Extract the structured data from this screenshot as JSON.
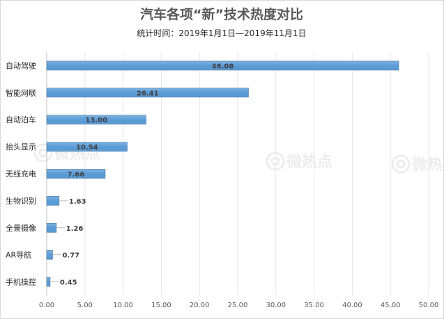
{
  "chart_data": {
    "type": "bar",
    "orientation": "horizontal",
    "title": "汽车各项“新”技术热度对比",
    "subtitle": "统计时间：2019年1月1日—2019年11月1日",
    "categories": [
      "自动驾驶",
      "智能网联",
      "自动泊车",
      "抬头显示",
      "无线充电",
      "生物识别",
      "全景摄像",
      "AR导航",
      "手机操控"
    ],
    "values": [
      46.08,
      26.41,
      13.0,
      10.54,
      7.66,
      1.63,
      1.26,
      0.77,
      0.45
    ],
    "value_labels": [
      "46.08",
      "26.41",
      "13.00",
      "10.54",
      "7.66",
      "1.63",
      "1.26",
      "0.77",
      "0.45"
    ],
    "xlim": [
      0,
      50
    ],
    "xticks": [
      "0.00",
      "5.00",
      "10.00",
      "15.00",
      "20.00",
      "25.00",
      "30.00",
      "35.00",
      "40.00",
      "45.00",
      "50.00"
    ],
    "xlabel": "",
    "ylabel": "",
    "grid": "vertical",
    "legend": "none",
    "bar_color": "#5b9bd5",
    "bar_color_light": "#7fb3e3"
  },
  "watermark": {
    "text": "微热点"
  }
}
